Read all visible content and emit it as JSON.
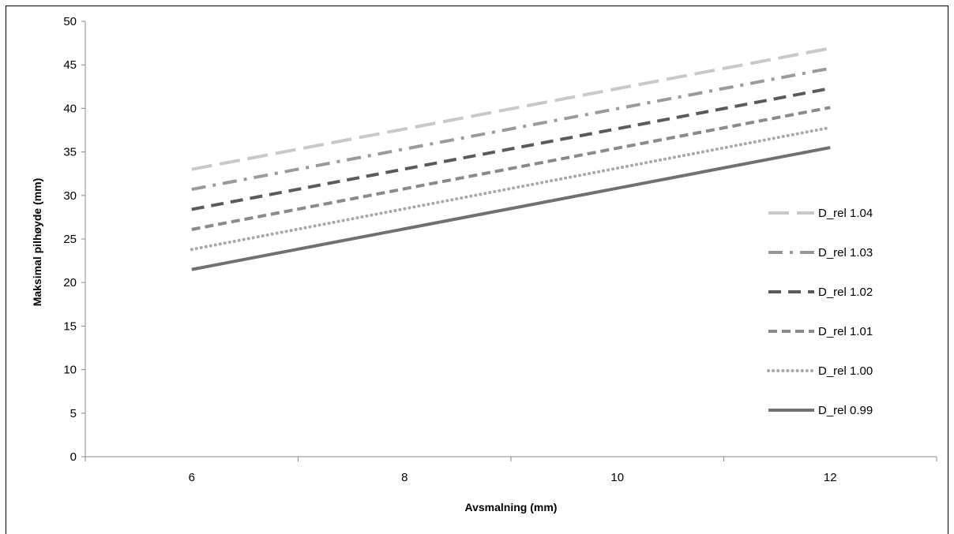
{
  "chart_data": {
    "type": "line",
    "title": "",
    "xlabel": "Avsmalning (mm)",
    "ylabel": "Maksimal pilhøyde (mm)",
    "x": [
      6,
      12
    ],
    "x_ticks": [
      "6",
      "8",
      "10",
      "12"
    ],
    "y_ticks": [
      "0",
      "5",
      "10",
      "15",
      "20",
      "25",
      "30",
      "35",
      "40",
      "45",
      "50"
    ],
    "xlim": [
      5,
      13
    ],
    "ylim": [
      0,
      50
    ],
    "grid": false,
    "legend_position": "right",
    "series": [
      {
        "name": "D_rel 1.04",
        "values": [
          33.0,
          46.9
        ],
        "color": "#c8c8c8",
        "style": "long-dash"
      },
      {
        "name": "D_rel 1.03",
        "values": [
          30.7,
          44.6
        ],
        "color": "#9a9a9a",
        "style": "dash-dot"
      },
      {
        "name": "D_rel 1.02",
        "values": [
          28.4,
          42.3
        ],
        "color": "#5a5a5a",
        "style": "dash"
      },
      {
        "name": "D_rel 1.01",
        "values": [
          26.1,
          40.1
        ],
        "color": "#8a8a8a",
        "style": "short-dash"
      },
      {
        "name": "D_rel 1.00",
        "values": [
          23.8,
          37.8
        ],
        "color": "#a8a8a8",
        "style": "dot"
      },
      {
        "name": "D_rel 0.99",
        "values": [
          21.5,
          35.5
        ],
        "color": "#707070",
        "style": "solid"
      }
    ]
  }
}
